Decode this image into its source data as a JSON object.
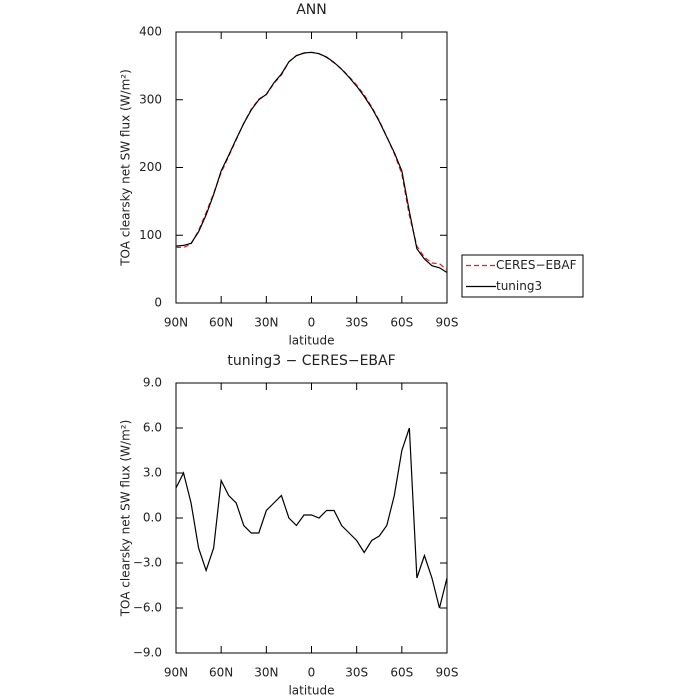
{
  "chart_data": [
    {
      "type": "line",
      "title": "ANN",
      "xlabel": "latitude",
      "ylabel": "TOA clearsky net SW flux (W/m²)",
      "x": [
        90,
        85,
        80,
        75,
        70,
        65,
        60,
        55,
        50,
        45,
        40,
        35,
        30,
        25,
        20,
        15,
        10,
        5,
        0,
        -5,
        -10,
        -15,
        -20,
        -25,
        -30,
        -35,
        -40,
        -45,
        -50,
        -55,
        -60,
        -65,
        -70,
        -75,
        -80,
        -85,
        -90
      ],
      "xlim": [
        90,
        -90
      ],
      "xticks": [
        {
          "value": 90,
          "label": "90N"
        },
        {
          "value": 60,
          "label": "60N"
        },
        {
          "value": 30,
          "label": "30N"
        },
        0,
        {
          "value": -30,
          "label": "30S"
        },
        {
          "value": -60,
          "label": "60S"
        },
        {
          "value": -90,
          "label": "90S"
        }
      ],
      "ylim": [
        0,
        400
      ],
      "yticks": [
        0,
        100,
        200,
        300,
        400
      ],
      "legend": "outside right",
      "series": [
        {
          "name": "CERES−EBAF",
          "color": "#e41a1c",
          "style": "dashed",
          "values": [
            82,
            82,
            87,
            107,
            133.5,
            162,
            192.5,
            216.5,
            241,
            265.5,
            286,
            301,
            307.5,
            324,
            336.5,
            356,
            365.5,
            368.8,
            369.8,
            368,
            362.5,
            354.5,
            345.5,
            334,
            321.5,
            307.3,
            289.5,
            269.2,
            245.5,
            220.5,
            190.5,
            129,
            84,
            67.5,
            59,
            58,
            49
          ]
        },
        {
          "name": "tuning3",
          "color": "#000000",
          "style": "solid",
          "values": [
            84,
            85,
            88,
            105,
            130,
            160,
            195,
            218,
            242,
            265,
            285,
            300,
            308,
            325,
            338,
            356,
            365,
            369,
            370,
            368,
            363,
            355,
            345,
            333,
            320,
            305,
            288,
            268,
            245,
            222,
            195,
            135,
            80,
            65,
            55,
            52,
            45
          ]
        }
      ]
    },
    {
      "type": "line",
      "title": "tuning3 − CERES−EBAF",
      "xlabel": "latitude",
      "ylabel": "TOA clearsky net SW flux (W/m²)",
      "x": [
        90,
        85,
        80,
        75,
        70,
        65,
        60,
        55,
        50,
        45,
        40,
        35,
        30,
        25,
        20,
        15,
        10,
        5,
        0,
        -5,
        -10,
        -15,
        -20,
        -25,
        -30,
        -35,
        -40,
        -45,
        -50,
        -55,
        -60,
        -65,
        -70,
        -75,
        -80,
        -85,
        -90
      ],
      "xlim": [
        90,
        -90
      ],
      "xticks": [
        {
          "value": 90,
          "label": "90N"
        },
        {
          "value": 60,
          "label": "60N"
        },
        {
          "value": 30,
          "label": "30N"
        },
        0,
        {
          "value": -30,
          "label": "30S"
        },
        {
          "value": -60,
          "label": "60S"
        },
        {
          "value": -90,
          "label": "90S"
        }
      ],
      "ylim": [
        -9,
        9
      ],
      "yticks": [
        {
          "value": -9,
          "label": "−9.0"
        },
        {
          "value": -6,
          "label": "−6.0"
        },
        {
          "value": -3,
          "label": "−3.0"
        },
        {
          "value": 0,
          "label": "0.0"
        },
        {
          "value": 3,
          "label": "3.0"
        },
        {
          "value": 6,
          "label": "6.0"
        },
        {
          "value": 9,
          "label": "9.0"
        }
      ],
      "series": [
        {
          "name": "tuning3",
          "color": "#000000",
          "style": "solid",
          "values": [
            2,
            3,
            1,
            -2,
            -3.5,
            -2,
            2.5,
            1.5,
            1,
            -0.5,
            -1,
            -1,
            0.5,
            1,
            1.5,
            0,
            -0.5,
            0.2,
            0.2,
            0,
            0.5,
            0.5,
            -0.5,
            -1,
            -1.5,
            -2.3,
            -1.5,
            -1.2,
            -0.5,
            1.5,
            4.5,
            6,
            -4,
            -2.5,
            -4,
            -6,
            -4
          ]
        }
      ]
    }
  ]
}
